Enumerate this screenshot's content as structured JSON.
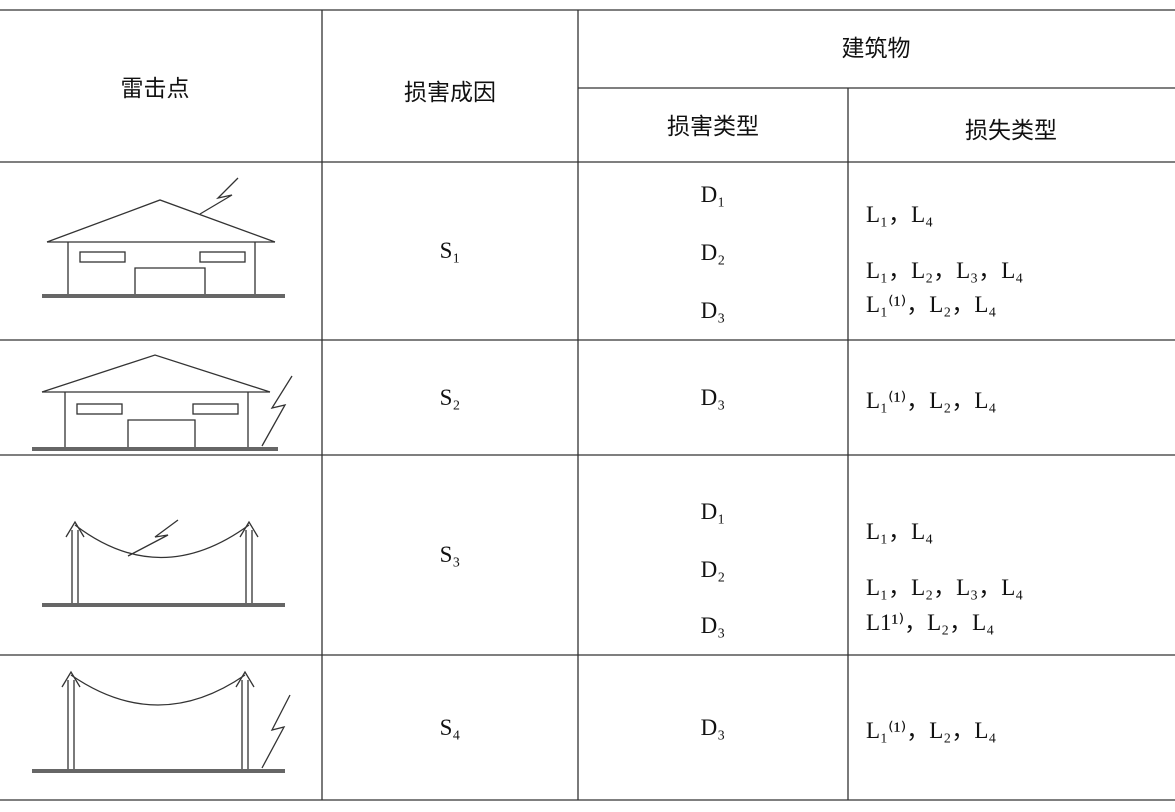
{
  "table": {
    "header": {
      "lightning_point": "雷击点",
      "damage_source": "损害成因",
      "structure": "建筑物",
      "damage_type": "损害类型",
      "loss_type": "损失类型"
    },
    "rows": [
      {
        "source": "S₁",
        "damage_types": [
          "D₁",
          "D₂",
          "D₃"
        ],
        "loss_types": [
          "L₁，L₄",
          "L₁，L₂，L₃，L₄",
          "L₁⁽¹⁾，L₂，L₄"
        ]
      },
      {
        "source": "S₂",
        "damage_types": [
          "D₃"
        ],
        "loss_types": [
          "L₁⁽¹⁾，L₂，L₄"
        ]
      },
      {
        "source": "S₃",
        "damage_types": [
          "D₁",
          "D₂",
          "D₃"
        ],
        "loss_types": [
          "L₁，L₄",
          "L₁，L₂，L₃，L₄",
          "L1¹⁾，L₂，L₄"
        ]
      },
      {
        "source": "S₄",
        "damage_types": [
          "D₃"
        ],
        "loss_types": [
          "L₁⁽¹⁾，L₂，L₄"
        ]
      }
    ]
  }
}
